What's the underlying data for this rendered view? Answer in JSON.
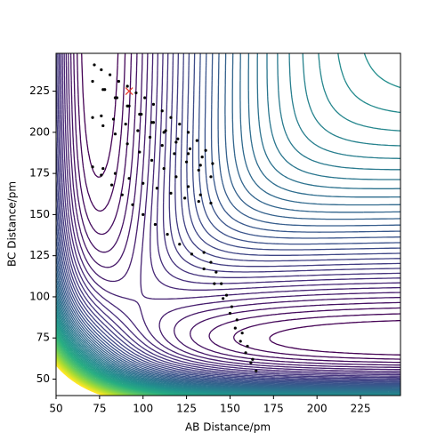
{
  "chart_data": {
    "type": "scatter",
    "x_label": "AB Distance/pm",
    "y_label": "BC Distance/pm",
    "xlim": [
      50,
      248
    ],
    "ylim": [
      40,
      248
    ],
    "xticks": [
      50,
      75,
      100,
      125,
      150,
      175,
      200,
      225
    ],
    "yticks": [
      50,
      75,
      100,
      125,
      150,
      175,
      200,
      225
    ],
    "series": [
      {
        "name": "trajectory",
        "color": "#000000",
        "x": [
          72,
          76,
          81,
          86,
          91,
          96,
          101,
          106,
          111,
          116,
          121,
          126,
          131,
          136,
          140,
          134,
          127,
          120,
          113,
          106,
          99,
          92,
          85,
          78,
          71,
          77,
          84,
          91,
          98,
          105,
          112,
          119,
          126,
          133,
          139,
          132,
          125,
          118,
          111,
          104,
          97,
          90,
          83,
          76,
          71,
          77,
          84,
          91,
          98,
          105,
          112,
          119,
          126,
          133,
          139,
          132,
          124,
          116,
          108,
          100,
          92,
          84,
          77,
          71,
          76,
          82,
          88,
          94,
          100,
          107,
          114,
          121,
          128,
          135,
          141,
          146,
          150,
          153,
          156,
          159,
          162,
          165,
          163,
          160,
          157,
          154,
          151,
          148,
          145,
          142,
          139,
          135
        ],
        "y": [
          241,
          238,
          235,
          231,
          228,
          224,
          221,
          217,
          213,
          209,
          205,
          200,
          195,
          189,
          181,
          185,
          190,
          196,
          201,
          206,
          211,
          216,
          221,
          226,
          231,
          226,
          221,
          216,
          211,
          206,
          200,
          194,
          187,
          180,
          173,
          177,
          182,
          187,
          192,
          197,
          201,
          205,
          208,
          210,
          209,
          204,
          199,
          193,
          188,
          183,
          178,
          173,
          167,
          162,
          157,
          158,
          160,
          163,
          166,
          169,
          172,
          175,
          178,
          179,
          174,
          168,
          162,
          156,
          150,
          144,
          138,
          132,
          126,
          117,
          108,
          99,
          90,
          81,
          73,
          66,
          60,
          55,
          62,
          70,
          78,
          86,
          94,
          101,
          108,
          115,
          121,
          127
        ]
      }
    ],
    "marker": {
      "x": 92,
      "y": 225,
      "color": "#e8382c"
    }
  }
}
